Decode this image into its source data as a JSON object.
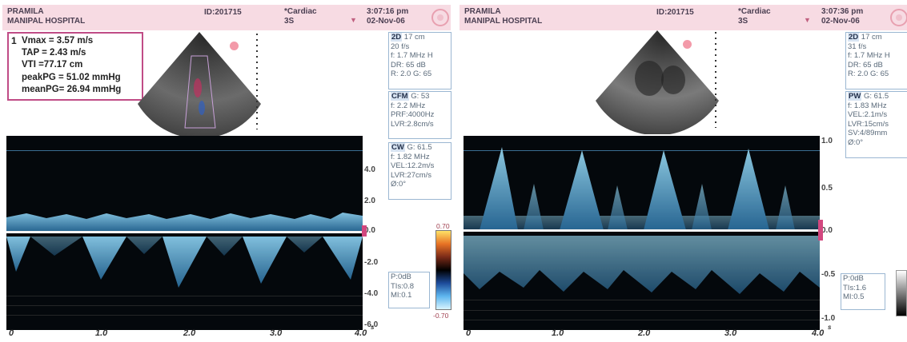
{
  "colors": {
    "header_bg": "#f7dbe3",
    "spectrum": "#5aa9d8",
    "trace_bg": "#04080c",
    "accent_pink": "#d2477f"
  },
  "left": {
    "header": {
      "patient": "PRAMILA",
      "hospital": "MANIPAL HOSPITAL",
      "id": "ID:201715",
      "preset": "*Cardiac",
      "preset2": "3S",
      "time": "3:07:16 pm",
      "date": "02-Nov-06"
    },
    "measurements": {
      "index": "1",
      "vmax": "Vmax     = 3.57 m/s",
      "tap": "TAP       = 2.43 m/s",
      "vti": "VTI        =77.17 cm",
      "peakpg": "peakPG = 51.02 mmHg",
      "meanpg": "meanPG= 26.94 mmHg"
    },
    "box_2d": {
      "mode": "2D",
      "l1": "17 cm",
      "l2": "20 f/s",
      "l3": "f: 1.7 MHz H",
      "l4": "DR: 65 dB",
      "l5": "R: 2.0   G: 65"
    },
    "box_cfm": {
      "mode": "CFM",
      "l1": "G: 53",
      "l2": "f: 2.2 MHz",
      "l3": "PRF:4000Hz",
      "l4": "LVR:2.8cm/s"
    },
    "box_cw": {
      "mode": "CW",
      "l1": "G: 61.5",
      "l2": "f: 1.82 MHz",
      "l3": "VEL:12.2m/s",
      "l4": "LVR:27cm/s",
      "l5": "Ø:0°"
    },
    "box_status": {
      "l1": "P:0dB",
      "l2": "TIs:0.8",
      "l3": "MI:0.1"
    },
    "scale": {
      "p4": "4.0",
      "p2": "2.0",
      "zero": "0.0",
      "m2": "-2.0",
      "m4": "-4.0",
      "m6": "-6.0"
    },
    "colorbar": {
      "top": "0.70",
      "bottom": "-0.70"
    },
    "time_axis": [
      "0",
      "1.0",
      "2.0",
      "3.0",
      "4.0"
    ],
    "time_unit": "s"
  },
  "right": {
    "header": {
      "patient": "PRAMILA",
      "hospital": "MANIPAL HOSPITAL",
      "id": "ID:201715",
      "preset": "*Cardiac",
      "preset2": "3S",
      "time": "3:07:36 pm",
      "date": "02-Nov-06"
    },
    "box_2d": {
      "mode": "2D",
      "l1": "17 cm",
      "l2": "31 f/s",
      "l3": "f: 1.7 MHz H",
      "l4": "DR: 65 dB",
      "l5": "R: 2.0   G: 65"
    },
    "box_pw": {
      "mode": "PW",
      "l1": "G: 61.5",
      "l2": "f: 1.83 MHz",
      "l3": "VEL:2.1m/s",
      "l4": "LVR:15cm/s",
      "l5": "SV:4/89mm",
      "l6": "Ø:0°"
    },
    "box_status": {
      "l1": "P:0dB",
      "l2": "TIs:1.6",
      "l3": "MI:0.5"
    },
    "scale": {
      "p10": "1.0",
      "p05": "0.5",
      "zero": "0.0",
      "m05": "-0.5",
      "m10": "-1.0"
    },
    "time_axis": [
      "0",
      "1.0",
      "2.0",
      "3.0",
      "4.0"
    ],
    "time_unit": "s"
  }
}
